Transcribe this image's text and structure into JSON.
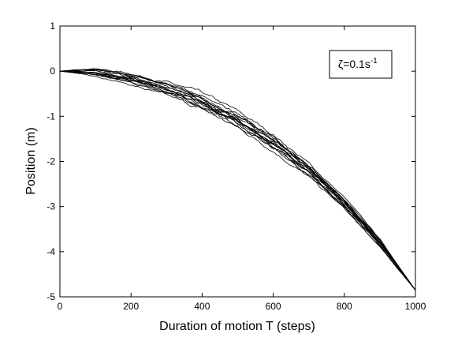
{
  "chart_data": {
    "type": "line",
    "title": "",
    "xlabel": "Duration of motion T (steps)",
    "ylabel": "Position (m)",
    "xlim": [
      0,
      1000
    ],
    "ylim": [
      -5,
      1
    ],
    "xticks": [
      0,
      200,
      400,
      600,
      800,
      1000
    ],
    "yticks": [
      1,
      0,
      -1,
      -2,
      -3,
      -4,
      -5
    ],
    "grid": false,
    "legend": "none",
    "line_color": "#000000",
    "annotation": {
      "symbol": "ζ",
      "text": "=0.1s",
      "superscript": "-1"
    },
    "series": [
      {
        "x": [
          0,
          100,
          200,
          300,
          400,
          500,
          600,
          700,
          800,
          900,
          1000
        ],
        "y": [
          0,
          -0.04,
          -0.18,
          -0.4,
          -0.7,
          -1.1,
          -1.6,
          -2.2,
          -2.92,
          -3.8,
          -4.85
        ]
      },
      {
        "x": [
          0,
          100,
          200,
          300,
          400,
          500,
          600,
          700,
          800,
          900,
          1000
        ],
        "y": [
          0,
          0.06,
          -0.05,
          -0.25,
          -0.5,
          -0.9,
          -1.4,
          -2.05,
          -2.8,
          -3.72,
          -4.85
        ]
      },
      {
        "x": [
          0,
          100,
          200,
          300,
          400,
          500,
          600,
          700,
          800,
          900,
          1000
        ],
        "y": [
          0,
          -0.1,
          -0.3,
          -0.55,
          -0.85,
          -1.25,
          -1.75,
          -2.35,
          -3.05,
          -3.9,
          -4.85
        ]
      },
      {
        "x": [
          0,
          100,
          200,
          300,
          400,
          500,
          600,
          700,
          800,
          900,
          1000
        ],
        "y": [
          0,
          0.02,
          -0.12,
          -0.35,
          -0.65,
          -1.05,
          -1.52,
          -2.15,
          -2.88,
          -3.78,
          -4.85
        ]
      },
      {
        "x": [
          0,
          100,
          200,
          300,
          400,
          500,
          600,
          700,
          800,
          900,
          1000
        ],
        "y": [
          0,
          -0.06,
          -0.22,
          -0.45,
          -0.75,
          -1.15,
          -1.66,
          -2.26,
          -2.98,
          -3.84,
          -4.85
        ]
      },
      {
        "x": [
          0,
          100,
          200,
          300,
          400,
          500,
          600,
          700,
          800,
          900,
          1000
        ],
        "y": [
          0,
          0.04,
          -0.08,
          -0.3,
          -0.58,
          -0.98,
          -1.48,
          -2.1,
          -2.85,
          -3.75,
          -4.85
        ]
      },
      {
        "x": [
          0,
          100,
          200,
          300,
          400,
          500,
          600,
          700,
          800,
          900,
          1000
        ],
        "y": [
          0,
          -0.03,
          -0.2,
          -0.42,
          -0.72,
          -1.12,
          -1.62,
          -2.22,
          -2.95,
          -3.82,
          -4.85
        ]
      },
      {
        "x": [
          0,
          100,
          200,
          300,
          400,
          500,
          600,
          700,
          800,
          900,
          1000
        ],
        "y": [
          0,
          -0.02,
          -0.15,
          -0.38,
          -0.68,
          -1.08,
          -1.58,
          -2.18,
          -2.9,
          -3.79,
          -4.85
        ]
      },
      {
        "x": [
          0,
          100,
          200,
          300,
          400,
          500,
          600,
          700,
          800,
          900,
          1000
        ],
        "y": [
          0,
          0.03,
          -0.1,
          -0.32,
          -0.62,
          -1.02,
          -1.55,
          -2.16,
          -2.89,
          -3.78,
          -4.85
        ]
      },
      {
        "x": [
          0,
          100,
          200,
          300,
          400,
          500,
          600,
          700,
          800,
          900,
          1000
        ],
        "y": [
          0,
          -0.08,
          -0.26,
          -0.5,
          -0.8,
          -1.2,
          -1.7,
          -2.3,
          -3.02,
          -3.87,
          -4.85
        ]
      },
      {
        "x": [
          0,
          100,
          200,
          300,
          400,
          500,
          600,
          700,
          800,
          900,
          1000
        ],
        "y": [
          0,
          0.01,
          -0.14,
          -0.36,
          -0.64,
          -1.04,
          -1.54,
          -2.14,
          -2.86,
          -3.76,
          -4.85
        ]
      },
      {
        "x": [
          0,
          100,
          200,
          300,
          400,
          500,
          600,
          700,
          800,
          900,
          1000
        ],
        "y": [
          0,
          -0.05,
          -0.19,
          -0.43,
          -0.74,
          -1.14,
          -1.64,
          -2.24,
          -2.96,
          -3.83,
          -4.85
        ]
      },
      {
        "x": [
          0,
          100,
          200,
          300,
          400,
          500,
          600,
          700,
          800,
          900,
          1000
        ],
        "y": [
          0,
          0.05,
          -0.07,
          -0.28,
          -0.55,
          -0.95,
          -1.45,
          -2.08,
          -2.83,
          -3.74,
          -4.85
        ]
      },
      {
        "x": [
          0,
          100,
          200,
          300,
          400,
          500,
          600,
          700,
          800,
          900,
          1000
        ],
        "y": [
          0,
          -0.04,
          -0.17,
          -0.39,
          -0.69,
          -1.09,
          -1.59,
          -2.19,
          -2.91,
          -3.8,
          -4.85
        ]
      },
      {
        "x": [
          0,
          100,
          200,
          300,
          400,
          500,
          600,
          700,
          800,
          900,
          1000
        ],
        "y": [
          0,
          -0.07,
          -0.24,
          -0.48,
          -0.78,
          -1.18,
          -1.68,
          -2.28,
          -3.0,
          -3.86,
          -4.85
        ]
      }
    ]
  }
}
